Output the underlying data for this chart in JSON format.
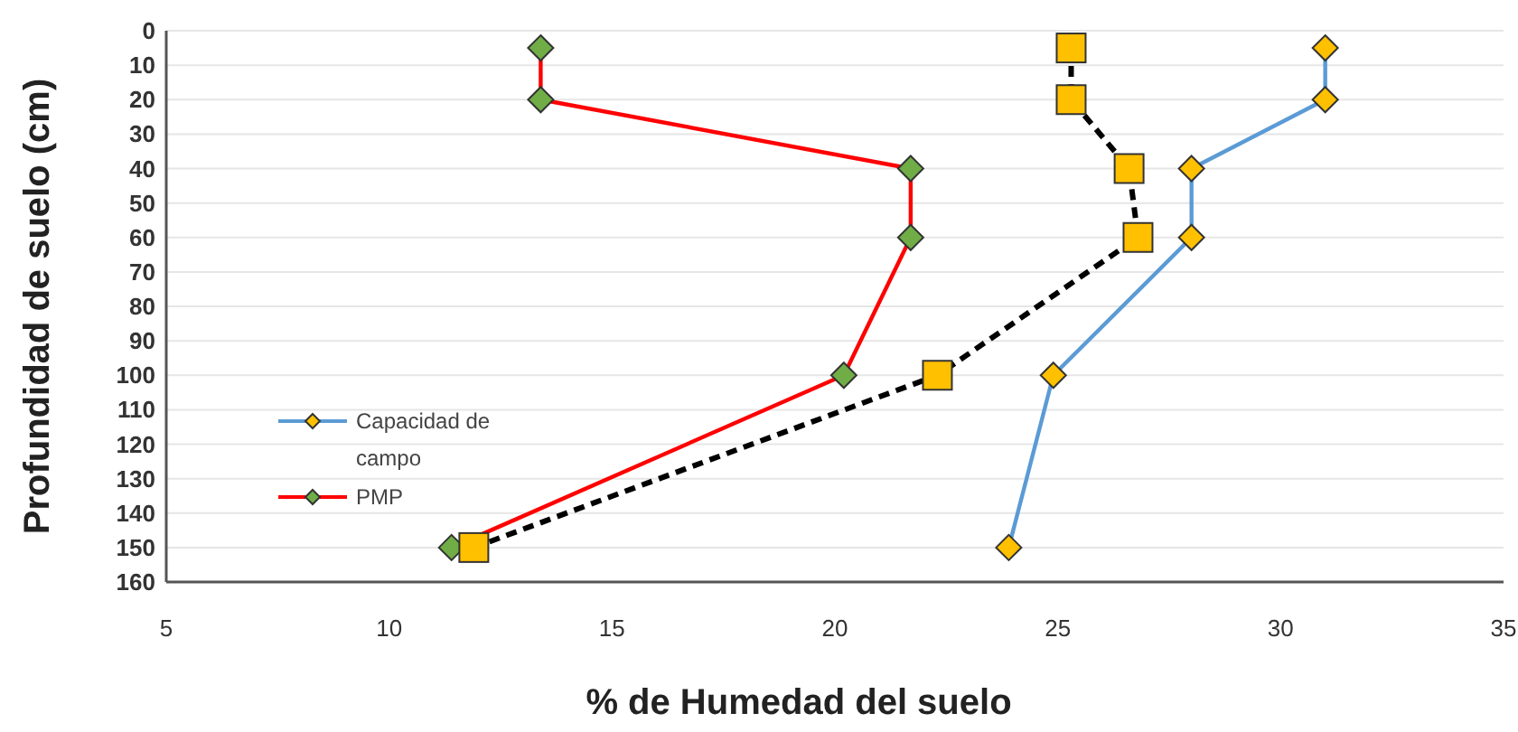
{
  "chart_data": {
    "type": "line",
    "xlabel": "% de Humedad del suelo",
    "ylabel": "Profundidad de suelo (cm)",
    "xlim": [
      5,
      35
    ],
    "xticks": [
      5,
      10,
      15,
      20,
      25,
      30,
      35
    ],
    "ylim": [
      160,
      0
    ],
    "yticks": [
      0,
      10,
      20,
      30,
      40,
      50,
      60,
      70,
      80,
      90,
      100,
      110,
      120,
      130,
      140,
      150,
      160
    ],
    "grid": "y",
    "legend": "bottom left",
    "series": [
      {
        "name": "Capacidad de campo",
        "color": "#5b9bd5",
        "marker": "diamond",
        "colors": [
          "#ffc000",
          "#ffc000",
          "#ffc000",
          "#ffc000",
          "#ffc000",
          "#ffc000"
        ],
        "line_style": "solid",
        "x": [
          31,
          31,
          28,
          28,
          24.9,
          23.9
        ],
        "values": [
          5,
          20,
          40,
          60,
          100,
          150
        ]
      },
      {
        "name": "PMP",
        "color": "#ff0000",
        "marker": "diamond",
        "colors": [
          "#70ad47",
          "#70ad47",
          "#70ad47",
          "#70ad47",
          "#70ad47",
          "#70ad47"
        ],
        "line_style": "solid",
        "x": [
          13.4,
          13.4,
          21.7,
          21.7,
          20.2,
          11.4
        ],
        "values": [
          5,
          20,
          40,
          60,
          100,
          150
        ]
      },
      {
        "color": "#000000",
        "marker": "square",
        "colors": [
          "#ffc000",
          "#ffc000",
          "#ffc000",
          "#ffc000",
          "#ffc000",
          "#ffc000"
        ],
        "line_style": "dashed",
        "x": [
          25.3,
          25.3,
          26.6,
          26.8,
          22.3,
          11.9
        ],
        "values": [
          5,
          20,
          40,
          60,
          100,
          150
        ]
      }
    ]
  }
}
